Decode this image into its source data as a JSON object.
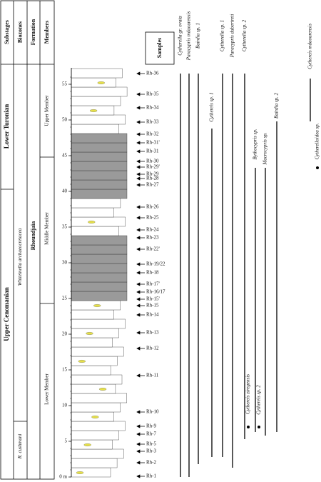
{
  "headers": [
    "Substages",
    "Biozones",
    "Formation",
    "Members"
  ],
  "substages": [
    "Lower Turonian",
    "Upper Cenomanian"
  ],
  "biozones": [
    "Whiteinella archaeocretacea",
    "R. cushmani"
  ],
  "formation": "Rhoundjaïa",
  "members": [
    "Upper Member",
    "Middle Member",
    "Lower Member"
  ],
  "depth_ticks": [
    {
      "value": 0,
      "label": "0 m"
    },
    5,
    10,
    15,
    20,
    25,
    30,
    35,
    40,
    45,
    50,
    55
  ],
  "samples_title": "Samples",
  "samples": [
    {
      "name": "Rh-36",
      "depth": 56.5
    },
    {
      "name": "Rh-35",
      "depth": 53.6
    },
    {
      "name": "Rh-34",
      "depth": 51.7
    },
    {
      "name": "Rh-33",
      "depth": 49.7
    },
    {
      "name": "Rh-32",
      "depth": 48
    },
    {
      "name": "Rh-31'",
      "depth": 46.8
    },
    {
      "name": "Rh-31",
      "depth": 45.6
    },
    {
      "name": "Rh-30",
      "depth": 44.2
    },
    {
      "name": "Rh-29'",
      "depth": 43.4
    },
    {
      "name": "Rh-29",
      "depth": 42.4
    },
    {
      "name": "Rh-28",
      "depth": 41.8
    },
    {
      "name": "Rh-27",
      "depth": 40.9
    },
    {
      "name": "Rh-26",
      "depth": 37.8
    },
    {
      "name": "Rh-25",
      "depth": 36.3
    },
    {
      "name": "Rh-24",
      "depth": 34.6
    },
    {
      "name": "Rh-23",
      "depth": 33.5
    },
    {
      "name": "Rh-22'",
      "depth": 31.9
    },
    {
      "name": "Rh-19/22",
      "depth": 29.8
    },
    {
      "name": "Rh-18",
      "depth": 28.6
    },
    {
      "name": "Rh-17'",
      "depth": 27
    },
    {
      "name": "Rh-16/17",
      "depth": 25.9
    },
    {
      "name": "Rh-15'",
      "depth": 24.9
    },
    {
      "name": "Rh-15",
      "depth": 24
    },
    {
      "name": "Rh-14",
      "depth": 22.7
    },
    {
      "name": "Rh-13",
      "depth": 20.2
    },
    {
      "name": "Rh-12",
      "depth": 18
    },
    {
      "name": "Rh-11",
      "depth": 14.2
    },
    {
      "name": "Rh-10",
      "depth": 9.1
    },
    {
      "name": "Rh-9",
      "depth": 7.1
    },
    {
      "name": "Rh-7",
      "depth": 6
    },
    {
      "name": "Rh-5",
      "depth": 4.6
    },
    {
      "name": "Rh-3",
      "depth": 3.6
    },
    {
      "name": "Rh-2",
      "depth": 2
    },
    {
      "name": "Rh-1",
      "depth": 0.1
    }
  ],
  "species": [
    {
      "name": "Cytherella gr. ovata",
      "from": 0,
      "to": 56.5
    },
    {
      "name": "Paracypris mdaourensis",
      "from": 0,
      "to": 56.5
    },
    {
      "name": "Bairdia sp. 1",
      "from": 1.8,
      "to": 56.5
    },
    {
      "name": "Cythereis sp. 1",
      "from": 2.8,
      "to": 48.8
    },
    {
      "name": "Cytherella sp. 1",
      "from": 2.8,
      "to": 56.5
    },
    {
      "name": "Paracypris dubertreti",
      "from": 1.3,
      "to": 56.5
    },
    {
      "name": "Cytherella sp. 2",
      "from": 5.3,
      "to": 56.5
    },
    {
      "name": "Bythocypris sp.",
      "from": 6.3,
      "to": 43.3
    },
    {
      "name": "Macrocypris sp.",
      "from": 5.8,
      "to": 43.3
    },
    {
      "name": "Bairdia sp. 2",
      "from": 6.3,
      "to": 49.8
    },
    {
      "name": "Cythereis mdaourensis",
      "from": 49.8,
      "to": 55.8
    },
    {
      "name": "Cytherelloidea sp.",
      "from": 43.3,
      "to": 43.3
    },
    {
      "name": "Cythereis ziregensis",
      "from": 7,
      "to": 7
    },
    {
      "name": "Cythereis sp. 2",
      "from": 7,
      "to": 7
    }
  ]
}
